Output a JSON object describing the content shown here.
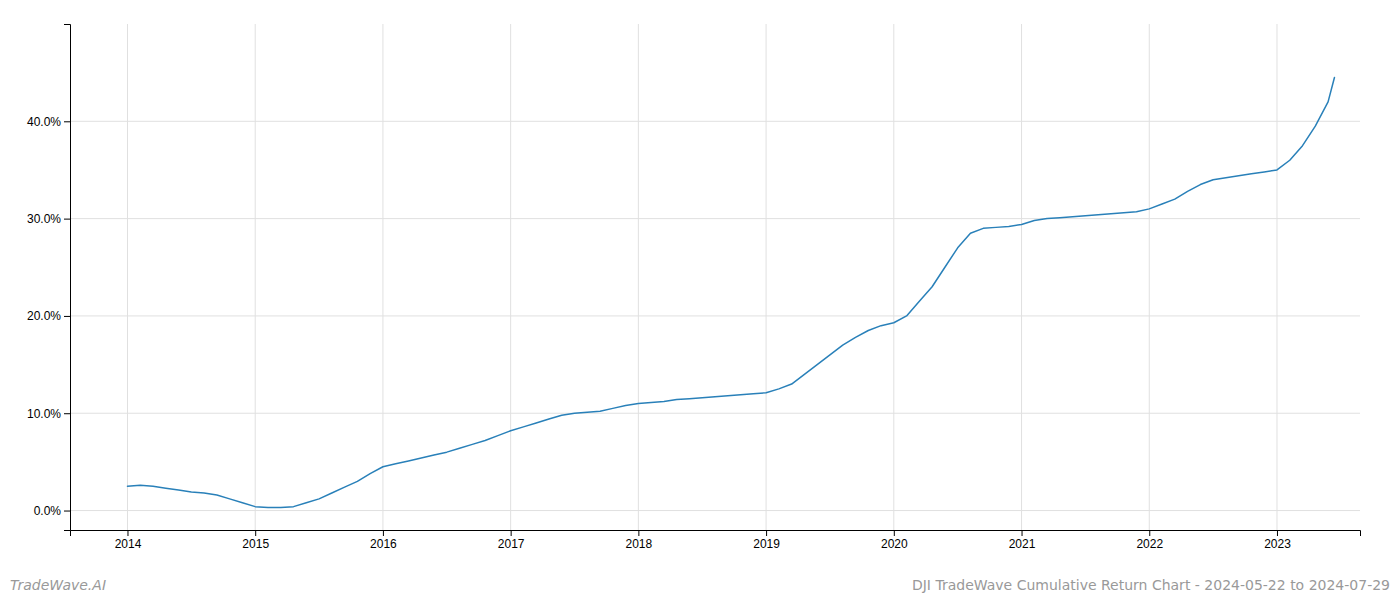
{
  "chart_data": {
    "type": "line",
    "title": "DJI TradeWave Cumulative Return Chart - 2024-05-22 to 2024-07-29",
    "annotations": [
      "TradeWave.AI"
    ],
    "color": "#2980b9",
    "x": [
      2014.0,
      2014.1,
      2014.2,
      2014.3,
      2014.4,
      2014.5,
      2014.6,
      2014.7,
      2014.8,
      2014.9,
      2015.0,
      2015.1,
      2015.2,
      2015.3,
      2015.4,
      2015.5,
      2015.6,
      2015.7,
      2015.8,
      2015.9,
      2016.0,
      2016.1,
      2016.2,
      2016.3,
      2016.4,
      2016.5,
      2016.6,
      2016.7,
      2016.8,
      2016.9,
      2017.0,
      2017.1,
      2017.2,
      2017.3,
      2017.4,
      2017.5,
      2017.6,
      2017.7,
      2017.8,
      2017.9,
      2018.0,
      2018.1,
      2018.2,
      2018.3,
      2018.4,
      2018.5,
      2018.6,
      2018.7,
      2018.8,
      2018.9,
      2019.0,
      2019.1,
      2019.2,
      2019.3,
      2019.4,
      2019.5,
      2019.6,
      2019.7,
      2019.8,
      2019.9,
      2020.0,
      2020.1,
      2020.2,
      2020.3,
      2020.4,
      2020.5,
      2020.6,
      2020.7,
      2020.8,
      2020.9,
      2021.0,
      2021.1,
      2021.2,
      2021.3,
      2021.4,
      2021.5,
      2021.6,
      2021.7,
      2021.8,
      2021.9,
      2022.0,
      2022.1,
      2022.2,
      2022.3,
      2022.4,
      2022.5,
      2022.6,
      2022.7,
      2022.8,
      2022.9,
      2023.0,
      2023.1,
      2023.2,
      2023.3,
      2023.4,
      2023.45
    ],
    "values": [
      2.5,
      2.6,
      2.5,
      2.3,
      2.1,
      1.9,
      1.8,
      1.6,
      1.2,
      0.8,
      0.4,
      0.3,
      0.3,
      0.4,
      0.8,
      1.2,
      1.8,
      2.4,
      3.0,
      3.8,
      4.5,
      4.8,
      5.1,
      5.4,
      5.7,
      6.0,
      6.4,
      6.8,
      7.2,
      7.7,
      8.2,
      8.6,
      9.0,
      9.4,
      9.8,
      10.0,
      10.1,
      10.2,
      10.5,
      10.8,
      11.0,
      11.1,
      11.2,
      11.4,
      11.5,
      11.6,
      11.7,
      11.8,
      11.9,
      12.0,
      12.1,
      12.5,
      13.0,
      14.0,
      15.0,
      16.0,
      17.0,
      17.8,
      18.5,
      19.0,
      19.3,
      20.0,
      21.5,
      23.0,
      25.0,
      27.0,
      28.5,
      29.0,
      29.1,
      29.2,
      29.4,
      29.8,
      30.0,
      30.1,
      30.2,
      30.3,
      30.4,
      30.5,
      30.6,
      30.7,
      31.0,
      31.5,
      32.0,
      32.8,
      33.5,
      34.0,
      34.2,
      34.4,
      34.6,
      34.8,
      35.0,
      36.0,
      37.5,
      39.5,
      42.0,
      44.5
    ],
    "xlim": [
      2013.55,
      2023.65
    ],
    "xticks": [
      2014,
      2015,
      2016,
      2017,
      2018,
      2019,
      2020,
      2021,
      2022,
      2023
    ],
    "ylim": [
      -2,
      50
    ],
    "yticks": [
      {
        "value": 0.0,
        "label": "0.0%"
      },
      {
        "value": 10.0,
        "label": "10.0%"
      },
      {
        "value": 20.0,
        "label": "20.0%"
      },
      {
        "value": 30.0,
        "label": "30.0%"
      },
      {
        "value": 40.0,
        "label": "40.0%"
      }
    ],
    "grid": true
  }
}
